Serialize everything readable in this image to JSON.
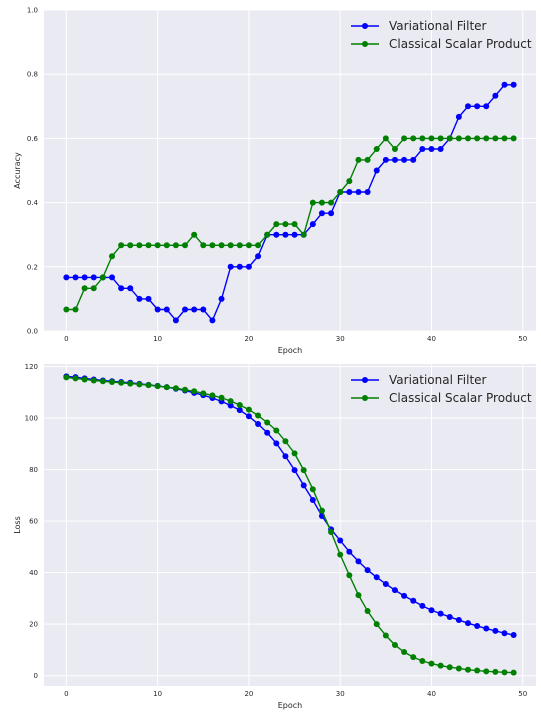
{
  "chart_data": [
    {
      "type": "line",
      "title": "",
      "xlabel": "Epoch",
      "ylabel": "Accuracy",
      "xlim": [
        -2.45,
        51.45
      ],
      "ylim": [
        0.0,
        1.0
      ],
      "xticks": [
        0,
        10,
        20,
        30,
        40,
        50
      ],
      "xtick_labels": [
        "0",
        "10",
        "20",
        "30",
        "40",
        "50"
      ],
      "yticks": [
        0.0,
        0.2,
        0.4,
        0.6,
        0.8,
        1.0
      ],
      "ytick_labels": [
        "0.0",
        "0.2",
        "0.4",
        "0.6",
        "0.8",
        "1.0"
      ],
      "grid": true,
      "legend_position": "top-right",
      "x": [
        0,
        1,
        2,
        3,
        4,
        5,
        6,
        7,
        8,
        9,
        10,
        11,
        12,
        13,
        14,
        15,
        16,
        17,
        18,
        19,
        20,
        21,
        22,
        23,
        24,
        25,
        26,
        27,
        28,
        29,
        30,
        31,
        32,
        33,
        34,
        35,
        36,
        37,
        38,
        39,
        40,
        41,
        42,
        43,
        44,
        45,
        46,
        47,
        48,
        49
      ],
      "series": [
        {
          "name": "Variational Filter",
          "color": "#0000ff",
          "values": [
            0.167,
            0.167,
            0.167,
            0.167,
            0.167,
            0.167,
            0.133,
            0.133,
            0.1,
            0.1,
            0.067,
            0.067,
            0.033,
            0.067,
            0.067,
            0.067,
            0.033,
            0.1,
            0.2,
            0.2,
            0.2,
            0.233,
            0.3,
            0.3,
            0.3,
            0.3,
            0.3,
            0.333,
            0.367,
            0.367,
            0.433,
            0.433,
            0.433,
            0.433,
            0.5,
            0.533,
            0.533,
            0.533,
            0.533,
            0.567,
            0.567,
            0.567,
            0.6,
            0.667,
            0.7,
            0.7,
            0.7,
            0.733,
            0.767,
            0.767
          ]
        },
        {
          "name": "Classical Scalar Product",
          "color": "#008000",
          "values": [
            0.067,
            0.067,
            0.133,
            0.133,
            0.167,
            0.233,
            0.267,
            0.267,
            0.267,
            0.267,
            0.267,
            0.267,
            0.267,
            0.267,
            0.3,
            0.267,
            0.267,
            0.267,
            0.267,
            0.267,
            0.267,
            0.267,
            0.3,
            0.333,
            0.333,
            0.333,
            0.3,
            0.4,
            0.4,
            0.4,
            0.433,
            0.467,
            0.533,
            0.533,
            0.567,
            0.6,
            0.567,
            0.6,
            0.6,
            0.6,
            0.6,
            0.6,
            0.6,
            0.6,
            0.6,
            0.6,
            0.6,
            0.6,
            0.6,
            0.6
          ]
        }
      ]
    },
    {
      "type": "line",
      "title": "",
      "xlabel": "Epoch",
      "ylabel": "Loss",
      "xlim": [
        -2.45,
        51.45
      ],
      "ylim": [
        -4.0,
        121.0
      ],
      "xticks": [
        0,
        10,
        20,
        30,
        40,
        50
      ],
      "xtick_labels": [
        "0",
        "10",
        "20",
        "30",
        "40",
        "50"
      ],
      "yticks": [
        0,
        20,
        40,
        60,
        80,
        100,
        120
      ],
      "ytick_labels": [
        "0",
        "20",
        "40",
        "60",
        "80",
        "100",
        "120"
      ],
      "grid": true,
      "legend_position": "top-right",
      "x": [
        0,
        1,
        2,
        3,
        4,
        5,
        6,
        7,
        8,
        9,
        10,
        11,
        12,
        13,
        14,
        15,
        16,
        17,
        18,
        19,
        20,
        21,
        22,
        23,
        24,
        25,
        26,
        27,
        28,
        29,
        30,
        31,
        32,
        33,
        34,
        35,
        36,
        37,
        38,
        39,
        40,
        41,
        42,
        43,
        44,
        45,
        46,
        47,
        48,
        49
      ],
      "series": [
        {
          "name": "Variational Filter",
          "color": "#0000ff",
          "values": [
            116.2,
            115.9,
            115.4,
            115.0,
            114.6,
            114.3,
            114.0,
            113.7,
            113.3,
            112.9,
            112.5,
            112.0,
            111.4,
            110.7,
            109.8,
            108.9,
            107.8,
            106.5,
            104.9,
            103.1,
            100.7,
            97.7,
            94.3,
            90.2,
            85.2,
            79.8,
            73.9,
            68.2,
            62.0,
            56.8,
            52.5,
            48.1,
            44.4,
            41.0,
            38.2,
            35.6,
            33.2,
            31.0,
            29.1,
            27.1,
            25.4,
            24.1,
            22.8,
            21.6,
            20.4,
            19.3,
            18.3,
            17.4,
            16.5,
            15.8
          ]
        },
        {
          "name": "Classical Scalar Product",
          "color": "#008000",
          "values": [
            115.8,
            115.4,
            115.0,
            114.6,
            114.3,
            114.0,
            113.7,
            113.4,
            113.1,
            112.8,
            112.4,
            112.0,
            111.6,
            111.0,
            110.4,
            109.6,
            108.8,
            107.9,
            106.6,
            105.1,
            103.3,
            101.0,
            98.3,
            95.2,
            91.0,
            86.3,
            79.8,
            72.4,
            64.1,
            55.8,
            47.0,
            39.0,
            31.3,
            25.1,
            20.0,
            15.6,
            11.9,
            9.2,
            7.2,
            5.7,
            4.7,
            3.9,
            3.3,
            2.8,
            2.3,
            2.0,
            1.7,
            1.5,
            1.3,
            1.2
          ]
        }
      ]
    }
  ]
}
